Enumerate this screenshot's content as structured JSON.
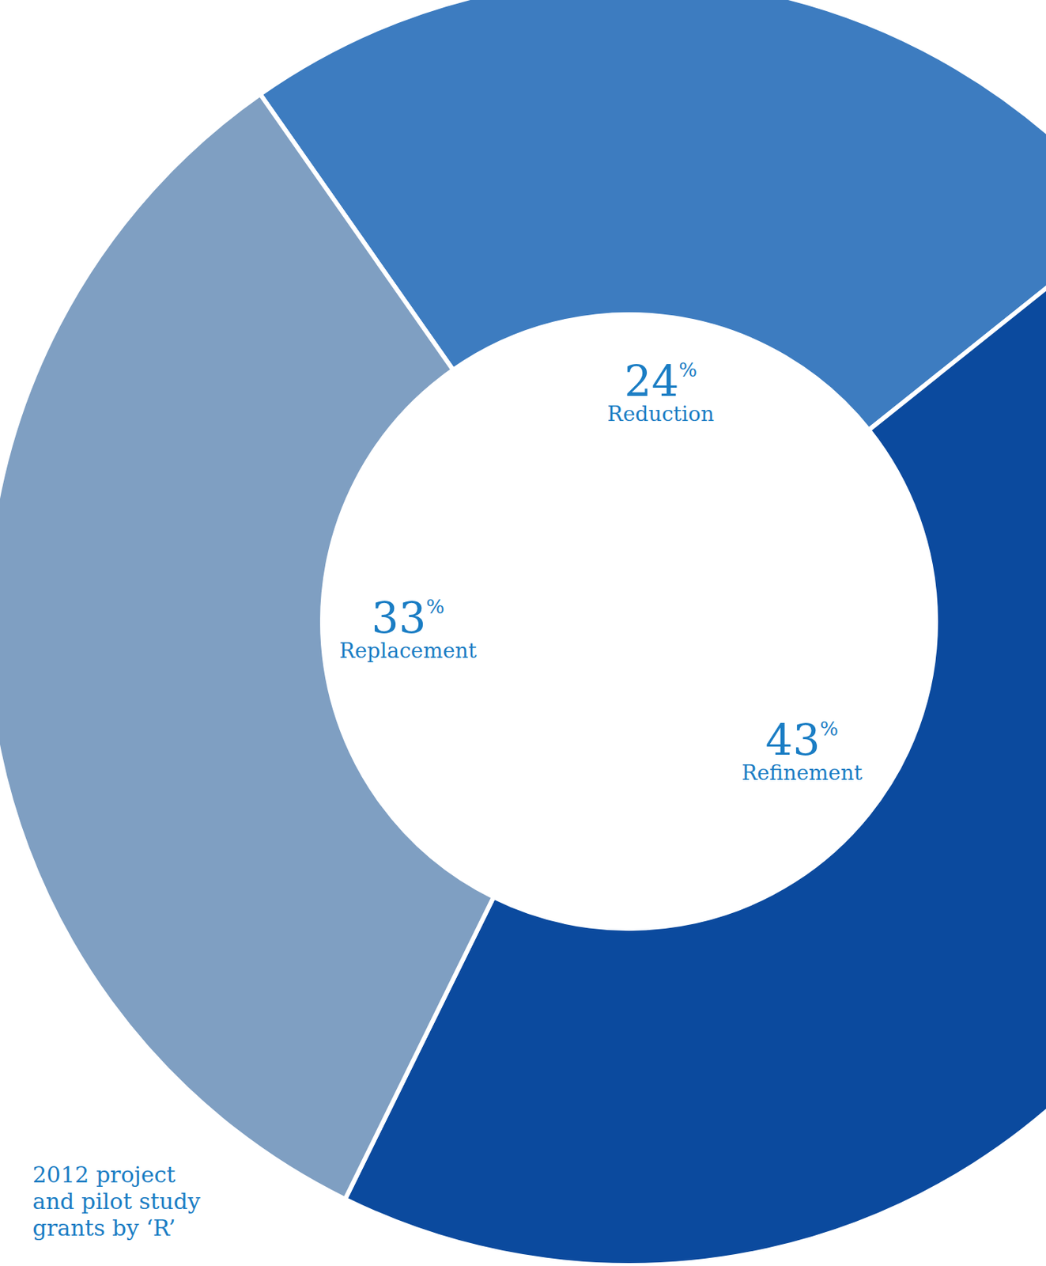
{
  "chart_data": {
    "type": "pie",
    "title": "2012 project and pilot study grants by ‘R’",
    "categories": [
      "Reduction",
      "Refinement",
      "Replacement"
    ],
    "values": [
      24,
      43,
      33
    ],
    "value_labels": [
      "24%",
      "43%",
      "33%"
    ],
    "colors": [
      "#3d7cc0",
      "#0b4a9e",
      "#7f9fc2"
    ],
    "data_labels": true
  }
}
